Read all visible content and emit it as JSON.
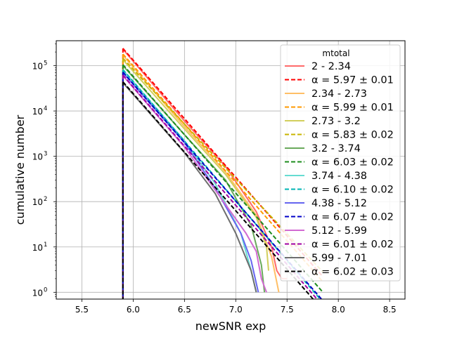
{
  "chart_data": {
    "type": "line",
    "title": "",
    "xlabel": "newSNR exp",
    "ylabel": "cumulative number",
    "xlim": [
      5.25,
      8.65
    ],
    "ylim_log10": [
      -0.15,
      5.55
    ],
    "yscale": "log",
    "grid": true,
    "x_ticks": [
      5.5,
      6.0,
      6.5,
      7.0,
      7.5,
      8.0,
      8.5
    ],
    "x_tick_labels": [
      "5.5",
      "6.0",
      "6.5",
      "7.0",
      "7.5",
      "8.0",
      "8.5"
    ],
    "y_ticks_log10": [
      0,
      1,
      2,
      3,
      4,
      5
    ],
    "y_tick_labels": [
      "10",
      "10",
      "10",
      "10",
      "10",
      "10"
    ],
    "y_tick_exponents": [
      "0",
      "1",
      "2",
      "3",
      "4",
      "5"
    ],
    "legend_title": "mtotal",
    "legend_position": "upper right",
    "series": [
      {
        "name": "2 - 2.34",
        "style": "solid",
        "color": "#ff6a6a",
        "points": [
          [
            5.9,
            230000
          ],
          [
            6.5,
            6000
          ],
          [
            6.9,
            600
          ],
          [
            7.2,
            60
          ],
          [
            7.35,
            10
          ],
          [
            7.4,
            3
          ],
          [
            7.45,
            2
          ],
          [
            7.5,
            2
          ]
        ]
      },
      {
        "name": "α = 5.97 ± 0.01",
        "style": "dashed",
        "color": "#ff0000",
        "points": [
          [
            5.9,
            240000
          ],
          [
            7.85,
            2.2
          ]
        ]
      },
      {
        "name": "2.34 - 2.73",
        "style": "solid",
        "color": "#ffbf66",
        "points": [
          [
            5.9,
            170000
          ],
          [
            6.5,
            4500
          ],
          [
            6.9,
            450
          ],
          [
            7.2,
            50
          ],
          [
            7.35,
            6
          ],
          [
            7.42,
            1
          ]
        ]
      },
      {
        "name": "α = 5.99 ± 0.01",
        "style": "dashed",
        "color": "#ff9900",
        "points": [
          [
            5.9,
            180000
          ],
          [
            7.85,
            1.7
          ]
        ]
      },
      {
        "name": "2.73 - 3.2",
        "style": "solid",
        "color": "#d2cf5c",
        "points": [
          [
            5.9,
            135000
          ],
          [
            6.5,
            4000
          ],
          [
            6.9,
            400
          ],
          [
            7.2,
            45
          ],
          [
            7.3,
            10
          ],
          [
            7.32,
            3
          ]
        ]
      },
      {
        "name": "α = 5.83 ± 0.02",
        "style": "dashed",
        "color": "#c8b400",
        "points": [
          [
            5.9,
            145000
          ],
          [
            7.85,
            2.8
          ]
        ]
      },
      {
        "name": "3.2 - 3.74",
        "style": "solid",
        "color": "#6aaa5c",
        "points": [
          [
            5.9,
            100000
          ],
          [
            6.5,
            3000
          ],
          [
            6.9,
            300
          ],
          [
            7.15,
            30
          ],
          [
            7.25,
            4
          ],
          [
            7.28,
            1
          ]
        ]
      },
      {
        "name": "α = 6.03 ± 0.02",
        "style": "dashed",
        "color": "#1e8c1e",
        "points": [
          [
            5.9,
            105000
          ],
          [
            7.85,
            1.0
          ]
        ]
      },
      {
        "name": "3.74 - 4.38",
        "style": "solid",
        "color": "#66dcd2",
        "points": [
          [
            5.9,
            80000
          ],
          [
            6.5,
            2200
          ],
          [
            6.8,
            250
          ],
          [
            7.05,
            20
          ],
          [
            7.15,
            3
          ],
          [
            7.2,
            1
          ]
        ]
      },
      {
        "name": "α = 6.10 ± 0.02",
        "style": "dashed",
        "color": "#00b4b4",
        "points": [
          [
            5.9,
            82000
          ],
          [
            7.85,
            0.6
          ]
        ]
      },
      {
        "name": "4.38 - 5.12",
        "style": "solid",
        "color": "#6666f0",
        "points": [
          [
            5.9,
            70000
          ],
          [
            6.5,
            2000
          ],
          [
            6.8,
            200
          ],
          [
            7.05,
            20
          ],
          [
            7.15,
            5
          ],
          [
            7.22,
            1
          ]
        ]
      },
      {
        "name": "α = 6.07 ± 0.02",
        "style": "dashed",
        "color": "#0000c8",
        "points": [
          [
            5.9,
            72000
          ],
          [
            7.85,
            0.65
          ]
        ]
      },
      {
        "name": "5.12 - 5.99",
        "style": "solid",
        "color": "#d26ad2",
        "points": [
          [
            5.9,
            60000
          ],
          [
            6.5,
            1600
          ],
          [
            6.8,
            180
          ],
          [
            7.1,
            20
          ],
          [
            7.2,
            8
          ],
          [
            7.25,
            2
          ],
          [
            7.3,
            1
          ]
        ]
      },
      {
        "name": "α = 6.01 ± 0.02",
        "style": "dashed",
        "color": "#a000a0",
        "points": [
          [
            5.9,
            62000
          ],
          [
            7.85,
            0.5
          ]
        ]
      },
      {
        "name": "5.99 - 7.01",
        "style": "solid",
        "color": "#6e6e6e",
        "points": [
          [
            5.9,
            42000
          ],
          [
            6.5,
            1200
          ],
          [
            6.8,
            150
          ],
          [
            7.0,
            20
          ],
          [
            7.15,
            3
          ],
          [
            7.2,
            1
          ]
        ]
      },
      {
        "name": "α = 6.02 ± 0.03",
        "style": "dashed",
        "color": "#000000",
        "points": [
          [
            5.9,
            44000
          ],
          [
            7.85,
            0.4
          ]
        ]
      }
    ]
  }
}
